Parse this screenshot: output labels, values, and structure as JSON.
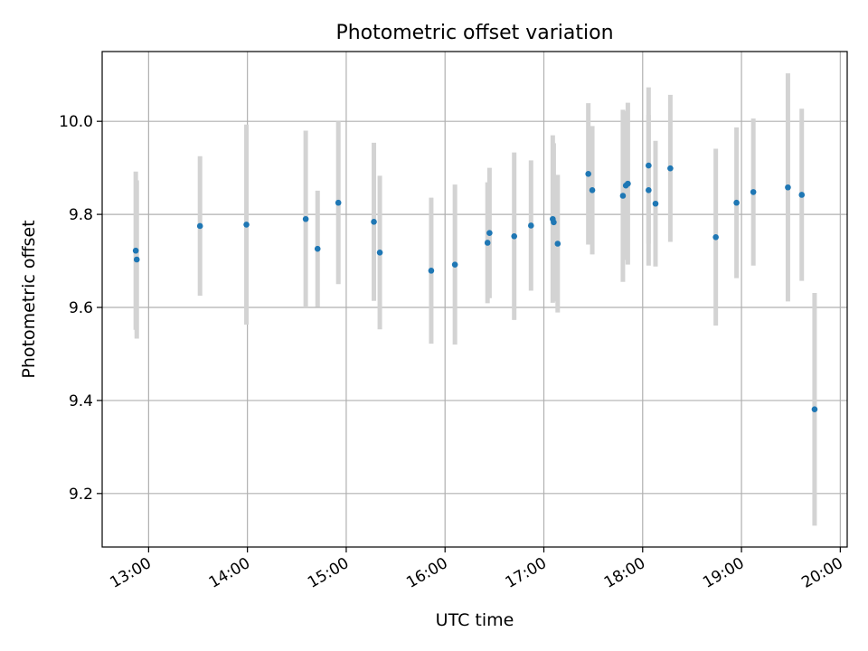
{
  "chart_data": {
    "type": "scatter",
    "title": "Photometric offset variation",
    "xlabel": "UTC time",
    "ylabel": "Photometric offset",
    "x_tick_labels": [
      "13:00",
      "14:00",
      "15:00",
      "16:00",
      "17:00",
      "18:00",
      "19:00",
      "20:00"
    ],
    "x_tick_hours": [
      13,
      14,
      15,
      16,
      17,
      18,
      19,
      20
    ],
    "y_tick_labels": [
      "9.2",
      "9.4",
      "9.6",
      "9.8",
      "10.0"
    ],
    "y_tick_values": [
      9.2,
      9.4,
      9.6,
      9.8,
      10.0
    ],
    "xlim_hours": [
      12.53,
      20.07
    ],
    "ylim": [
      9.085,
      10.15
    ],
    "grid": true,
    "point_color": "#1f77b4",
    "errorbar_color": "#d3d3d3",
    "points": [
      {
        "x_hours": 12.87,
        "y": 9.722,
        "err": 0.17
      },
      {
        "x_hours": 12.88,
        "y": 9.703,
        "err": 0.17
      },
      {
        "x_hours": 13.52,
        "y": 9.775,
        "err": 0.15
      },
      {
        "x_hours": 13.99,
        "y": 9.778,
        "err": 0.215
      },
      {
        "x_hours": 14.59,
        "y": 9.79,
        "err": 0.19
      },
      {
        "x_hours": 14.71,
        "y": 9.726,
        "err": 0.125
      },
      {
        "x_hours": 14.92,
        "y": 9.825,
        "err": 0.175
      },
      {
        "x_hours": 15.28,
        "y": 9.784,
        "err": 0.17
      },
      {
        "x_hours": 15.34,
        "y": 9.718,
        "err": 0.165
      },
      {
        "x_hours": 15.86,
        "y": 9.679,
        "err": 0.157
      },
      {
        "x_hours": 16.1,
        "y": 9.692,
        "err": 0.172
      },
      {
        "x_hours": 16.43,
        "y": 9.739,
        "err": 0.13
      },
      {
        "x_hours": 16.45,
        "y": 9.76,
        "err": 0.14
      },
      {
        "x_hours": 16.7,
        "y": 9.753,
        "err": 0.18
      },
      {
        "x_hours": 16.87,
        "y": 9.776,
        "err": 0.14
      },
      {
        "x_hours": 17.09,
        "y": 9.79,
        "err": 0.18
      },
      {
        "x_hours": 17.1,
        "y": 9.783,
        "err": 0.17
      },
      {
        "x_hours": 17.14,
        "y": 9.737,
        "err": 0.148
      },
      {
        "x_hours": 17.45,
        "y": 9.887,
        "err": 0.152
      },
      {
        "x_hours": 17.49,
        "y": 9.852,
        "err": 0.138
      },
      {
        "x_hours": 17.8,
        "y": 9.84,
        "err": 0.185
      },
      {
        "x_hours": 17.83,
        "y": 9.862,
        "err": 0.16
      },
      {
        "x_hours": 17.85,
        "y": 9.866,
        "err": 0.174
      },
      {
        "x_hours": 18.06,
        "y": 9.905,
        "err": 0.168
      },
      {
        "x_hours": 18.06,
        "y": 9.852,
        "err": 0.162
      },
      {
        "x_hours": 18.13,
        "y": 9.823,
        "err": 0.135
      },
      {
        "x_hours": 18.28,
        "y": 9.899,
        "err": 0.158
      },
      {
        "x_hours": 18.74,
        "y": 9.751,
        "err": 0.19
      },
      {
        "x_hours": 18.95,
        "y": 9.825,
        "err": 0.162
      },
      {
        "x_hours": 19.12,
        "y": 9.848,
        "err": 0.158
      },
      {
        "x_hours": 19.47,
        "y": 9.858,
        "err": 0.245
      },
      {
        "x_hours": 19.61,
        "y": 9.842,
        "err": 0.185
      },
      {
        "x_hours": 19.74,
        "y": 9.381,
        "err": 0.25
      }
    ]
  }
}
